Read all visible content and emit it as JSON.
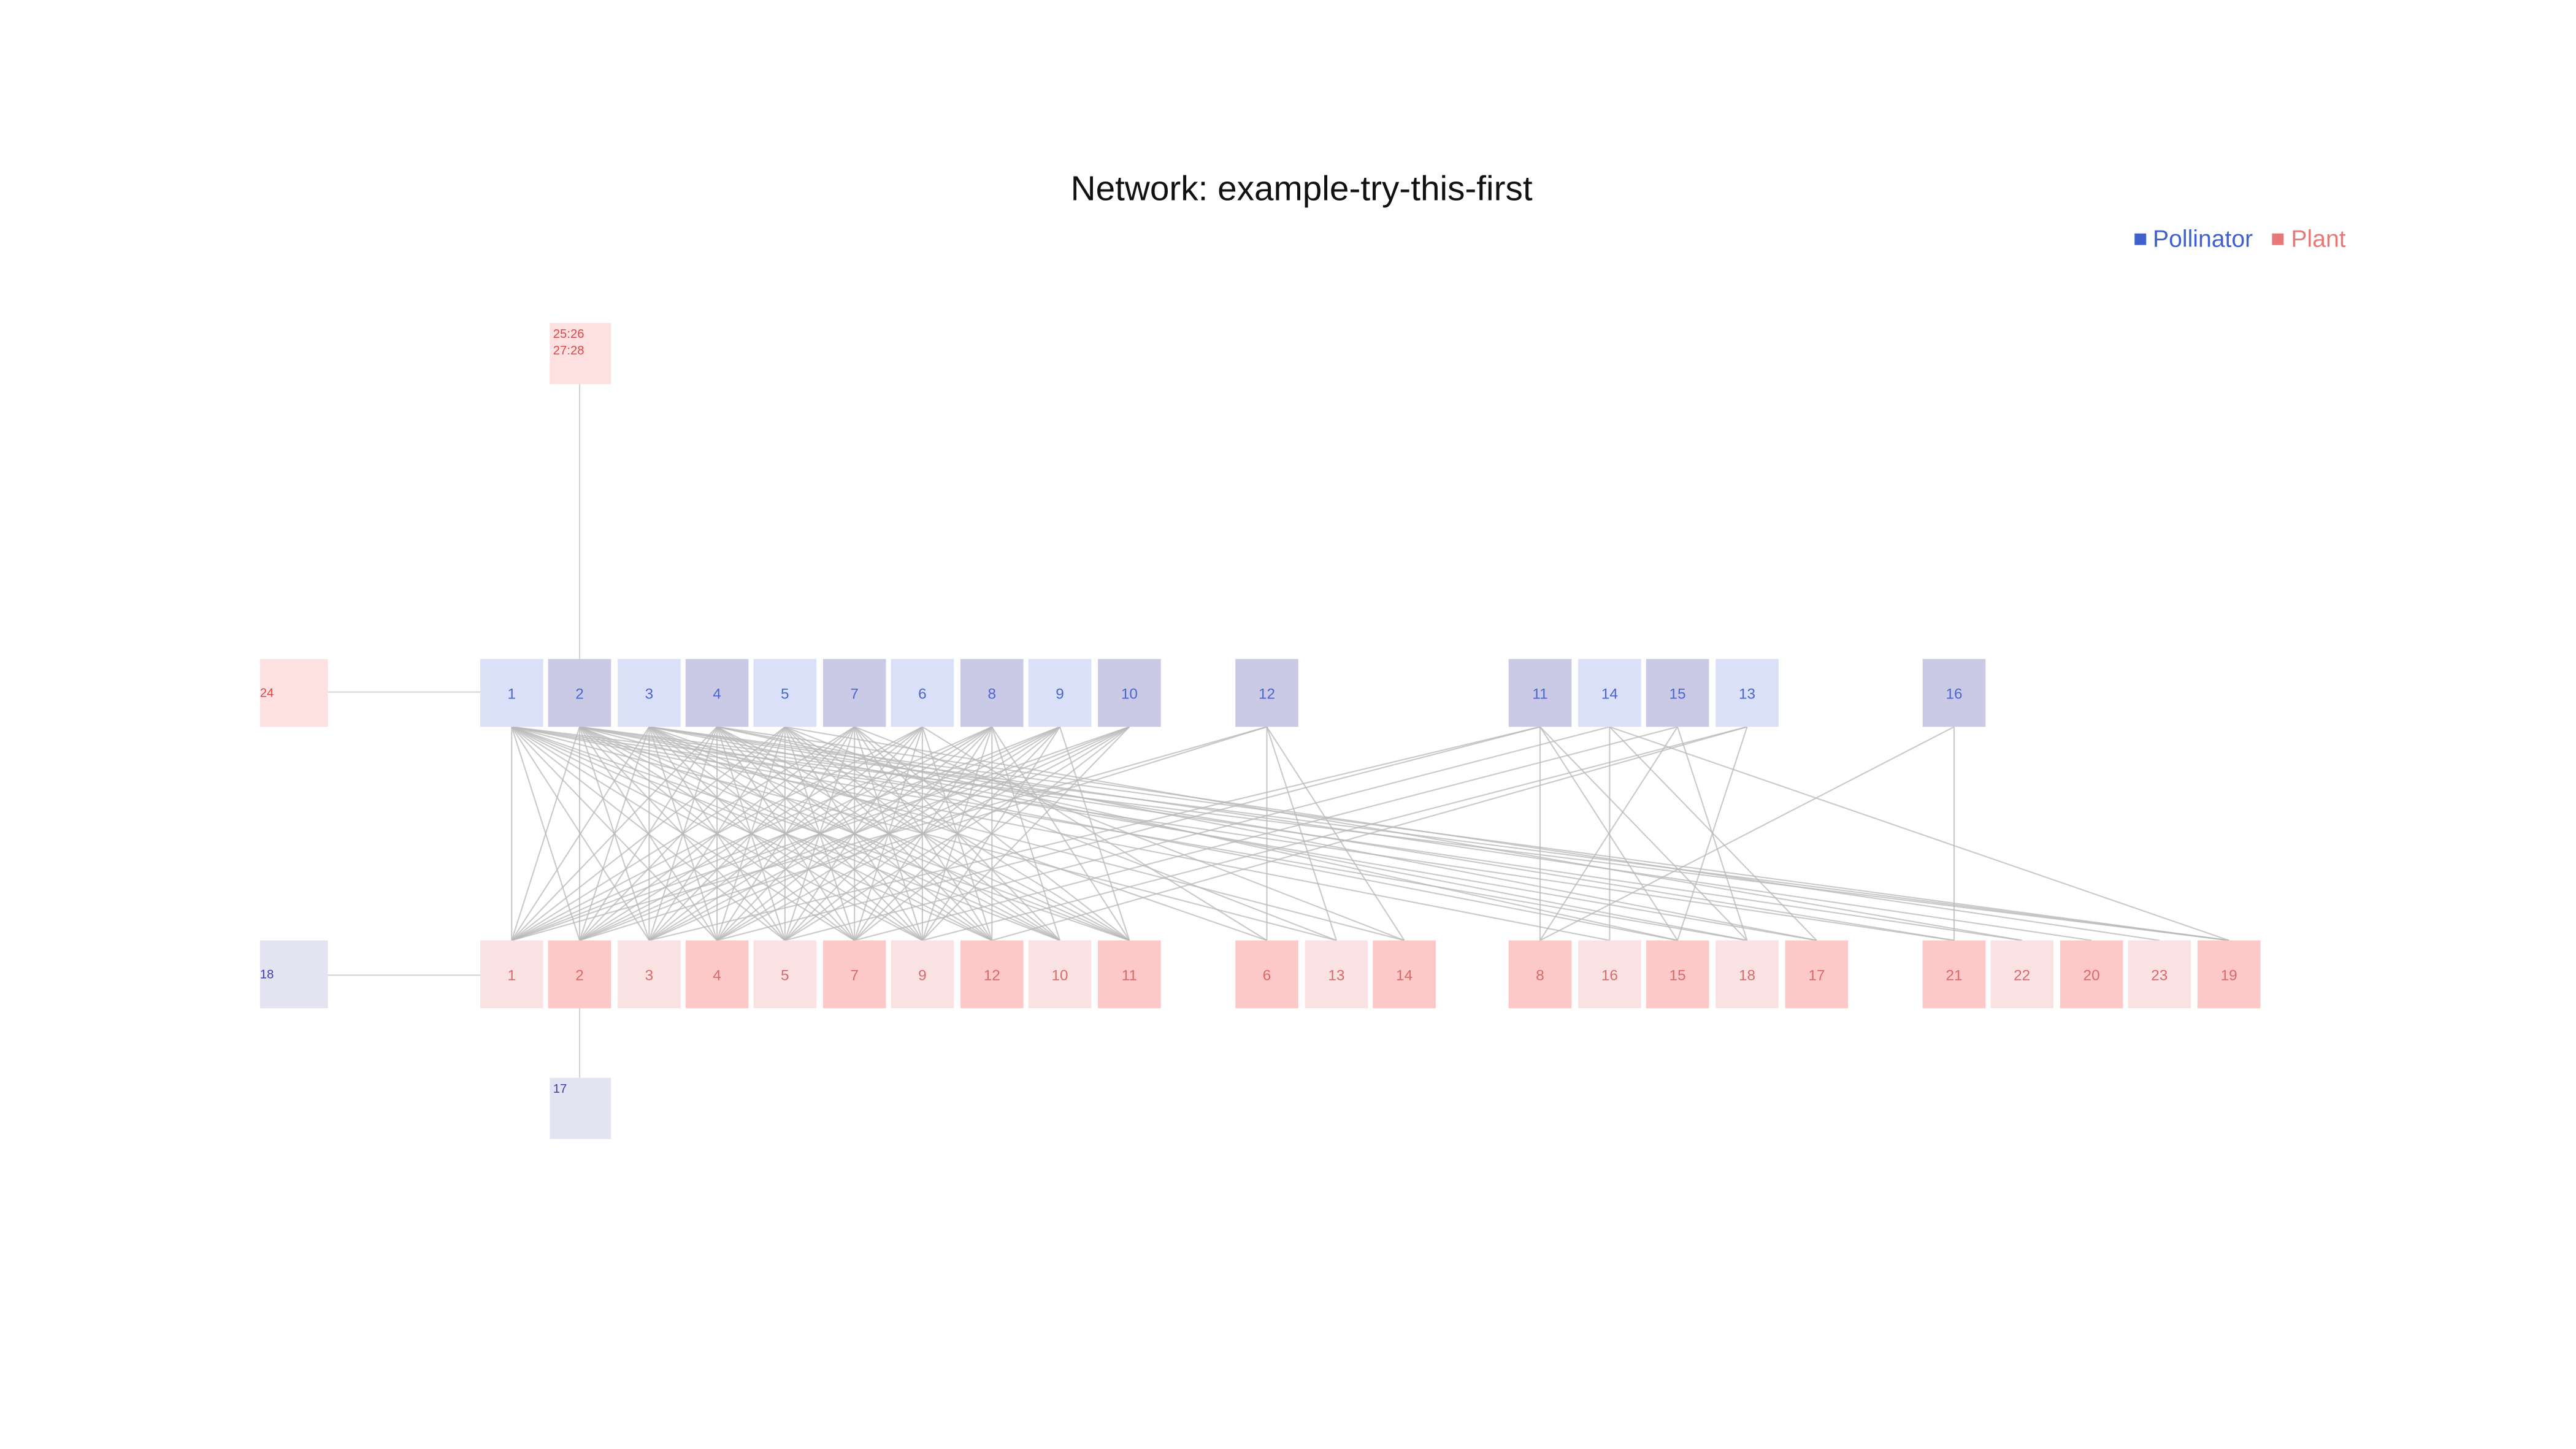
{
  "title": "Network: example-try-this-first",
  "legend": [
    {
      "label": "Pollinator",
      "color": "#4060d0"
    },
    {
      "label": "Plant",
      "color": "#e87878"
    }
  ],
  "colors": {
    "pollinator_text": "#4a66cf",
    "plant_text": "#d96a6a",
    "pollinator_light": "#dae0f8",
    "pollinator_dark": "#cbcae6",
    "plant_light": "#fbe2e2",
    "plant_dark": "#fcc8c8",
    "edge": "#b8b8b8"
  },
  "pollinators": [
    "1",
    "2",
    "3",
    "4",
    "5",
    "7",
    "6",
    "8",
    "9",
    "10",
    "12",
    "11",
    "14",
    "15",
    "13",
    "16"
  ],
  "plants": [
    "1",
    "2",
    "3",
    "4",
    "5",
    "7",
    "9",
    "12",
    "10",
    "11",
    "6",
    "13",
    "14",
    "8",
    "16",
    "15",
    "18",
    "17",
    "21",
    "22",
    "20",
    "23",
    "19"
  ],
  "extra_nodes": {
    "top_plant": "25:26\n27:28",
    "left_plant": "24",
    "left_pollinator": "18",
    "bottom_pollinator": "17"
  }
}
